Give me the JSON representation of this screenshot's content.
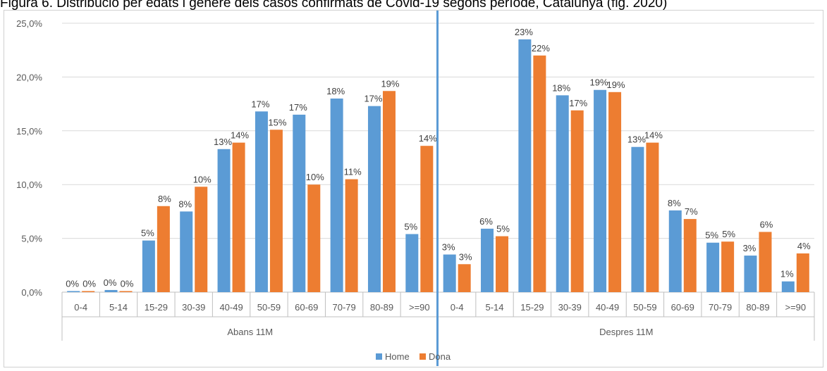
{
  "title": "Figura 6. Distribució per edats i gènere dels casos confirmats de Covid-19 segons període, Catalunya (fig. 2020)",
  "chart_data": {
    "type": "bar",
    "groups": [
      {
        "label": "Abans 11M",
        "categories": [
          "0-4",
          "5-14",
          "15-29",
          "30-39",
          "40-49",
          "50-59",
          "60-69",
          "70-79",
          "80-89",
          ">=90"
        ]
      },
      {
        "label": "Despres 11M",
        "categories": [
          "0-4",
          "5-14",
          "15-29",
          "30-39",
          "40-49",
          "50-59",
          "60-69",
          "70-79",
          "80-89",
          ">=90"
        ]
      }
    ],
    "series": [
      {
        "name": "Home",
        "color": "#5B9BD5",
        "values": [
          0.1,
          0.2,
          4.8,
          7.5,
          13.3,
          16.8,
          16.5,
          18.0,
          17.3,
          5.4,
          3.5,
          5.9,
          23.5,
          18.3,
          18.8,
          13.5,
          7.6,
          4.6,
          3.4,
          1.0
        ],
        "labels": [
          "0%",
          "0%",
          "5%",
          "8%",
          "13%",
          "17%",
          "17%",
          "18%",
          "17%",
          "5%",
          "3%",
          "6%",
          "23%",
          "18%",
          "19%",
          "13%",
          "8%",
          "5%",
          "3%",
          "1%"
        ]
      },
      {
        "name": "Dona",
        "color": "#ED7D31",
        "values": [
          0.1,
          0.1,
          8.0,
          9.8,
          13.9,
          15.1,
          10.0,
          10.5,
          18.7,
          13.6,
          2.6,
          5.2,
          22.0,
          16.9,
          18.6,
          13.9,
          6.8,
          4.7,
          5.6,
          3.6
        ],
        "labels": [
          "0%",
          "0%",
          "8%",
          "10%",
          "14%",
          "15%",
          "10%",
          "11%",
          "19%",
          "14%",
          "3%",
          "5%",
          "22%",
          "17%",
          "19%",
          "14%",
          "7%",
          "5%",
          "6%",
          "4%"
        ]
      }
    ],
    "y_ticks": [
      "0,0%",
      "5,0%",
      "10,0%",
      "15,0%",
      "20,0%",
      "25,0%"
    ],
    "ylim": [
      0,
      25
    ],
    "xlabel": "",
    "ylabel": "",
    "grid": true,
    "legend_position": "bottom"
  }
}
